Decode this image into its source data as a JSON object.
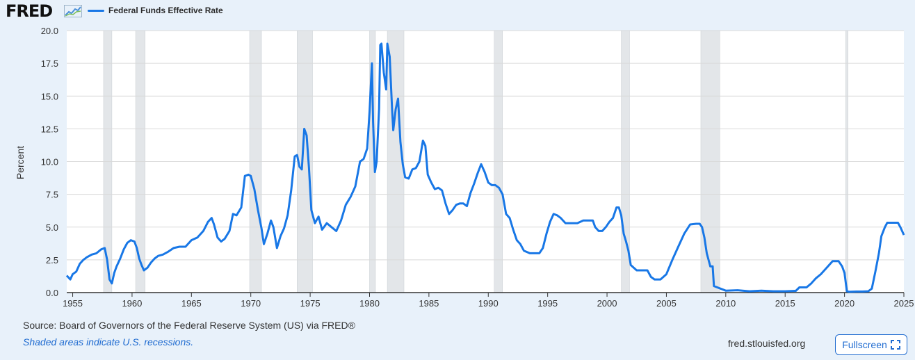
{
  "header": {
    "logo_text": "FRED",
    "legend_label": "Federal Funds Effective Rate"
  },
  "footer": {
    "source": "Source: Board of Governors of the Federal Reserve System (US) via FRED®",
    "note": "Shaded areas indicate U.S. recessions.",
    "site": "fred.stlouisfed.org",
    "fullscreen_label": "Fullscreen",
    "fullscreen_icon": "fullscreen-icon"
  },
  "colors": {
    "line": "#1877e6",
    "recession": "#e3e6e9",
    "plot_bg": "#ffffff",
    "grid": "#d9d9d9"
  },
  "chart_data": {
    "type": "line",
    "title": "",
    "xlabel": "",
    "ylabel": "Percent",
    "xlim": [
      1954.5,
      2025
    ],
    "ylim": [
      0,
      20
    ],
    "yticks": [
      "0.0",
      "2.5",
      "5.0",
      "7.5",
      "10.0",
      "12.5",
      "15.0",
      "17.5",
      "20.0"
    ],
    "xticks": [
      "1955",
      "1960",
      "1965",
      "1970",
      "1975",
      "1980",
      "1985",
      "1990",
      "1995",
      "2000",
      "2005",
      "2010",
      "2015",
      "2020",
      "2025"
    ],
    "grid": true,
    "recessions": [
      [
        1957.6,
        1958.3
      ],
      [
        1960.3,
        1961.1
      ],
      [
        1969.9,
        1970.9
      ],
      [
        1973.9,
        1975.2
      ],
      [
        1980.0,
        1980.5
      ],
      [
        1981.5,
        1982.9
      ],
      [
        1990.5,
        1991.2
      ],
      [
        2001.2,
        2001.9
      ],
      [
        2007.9,
        2009.5
      ],
      [
        2020.1,
        2020.3
      ]
    ],
    "series": [
      {
        "name": "Federal Funds Effective Rate",
        "x": [
          1954.5,
          1954.8,
          1955.0,
          1955.3,
          1955.6,
          1955.9,
          1956.2,
          1956.6,
          1957.0,
          1957.4,
          1957.7,
          1957.9,
          1958.1,
          1958.3,
          1958.5,
          1958.7,
          1959.0,
          1959.3,
          1959.6,
          1959.9,
          1960.2,
          1960.4,
          1960.6,
          1960.8,
          1961.0,
          1961.3,
          1961.6,
          1961.9,
          1962.2,
          1962.6,
          1963.0,
          1963.5,
          1964.0,
          1964.5,
          1965.0,
          1965.5,
          1966.0,
          1966.4,
          1966.7,
          1966.9,
          1967.2,
          1967.5,
          1967.8,
          1968.2,
          1968.5,
          1968.8,
          1969.2,
          1969.5,
          1969.8,
          1970.0,
          1970.3,
          1970.6,
          1970.9,
          1971.1,
          1971.4,
          1971.7,
          1971.9,
          1972.2,
          1972.5,
          1972.8,
          1973.1,
          1973.4,
          1973.7,
          1973.9,
          1974.1,
          1974.3,
          1974.5,
          1974.7,
          1974.9,
          1975.1,
          1975.4,
          1975.7,
          1976.0,
          1976.4,
          1976.8,
          1977.2,
          1977.6,
          1978.0,
          1978.4,
          1978.8,
          1979.2,
          1979.5,
          1979.8,
          1980.0,
          1980.2,
          1980.3,
          1980.45,
          1980.6,
          1980.8,
          1980.9,
          1981.0,
          1981.2,
          1981.4,
          1981.5,
          1981.7,
          1981.9,
          1982.0,
          1982.2,
          1982.4,
          1982.6,
          1982.8,
          1983.0,
          1983.3,
          1983.6,
          1983.9,
          1984.2,
          1984.5,
          1984.7,
          1984.9,
          1985.2,
          1985.5,
          1985.8,
          1986.1,
          1986.4,
          1986.7,
          1987.0,
          1987.3,
          1987.6,
          1987.9,
          1988.2,
          1988.5,
          1988.8,
          1989.1,
          1989.4,
          1989.7,
          1990.0,
          1990.3,
          1990.6,
          1990.9,
          1991.2,
          1991.5,
          1991.8,
          1992.1,
          1992.4,
          1992.7,
          1993.0,
          1993.5,
          1994.0,
          1994.3,
          1994.6,
          1994.9,
          1995.2,
          1995.5,
          1995.8,
          1996.1,
          1996.5,
          1997.0,
          1997.5,
          1998.0,
          1998.5,
          1998.8,
          1999.0,
          1999.3,
          1999.6,
          1999.9,
          2000.2,
          2000.5,
          2000.8,
          2001.0,
          2001.2,
          2001.4,
          2001.6,
          2001.8,
          2002.0,
          2002.5,
          2003.0,
          2003.4,
          2003.7,
          2004.0,
          2004.5,
          2005.0,
          2005.5,
          2006.0,
          2006.5,
          2007.0,
          2007.5,
          2007.8,
          2008.0,
          2008.2,
          2008.4,
          2008.7,
          2008.9,
          2009.0,
          2010.0,
          2011.0,
          2012.0,
          2013.0,
          2014.0,
          2015.0,
          2015.9,
          2016.2,
          2016.8,
          2017.2,
          2017.6,
          2018.0,
          2018.5,
          2019.0,
          2019.5,
          2019.8,
          2020.0,
          2020.2,
          2020.4,
          2021.0,
          2021.5,
          2022.0,
          2022.3,
          2022.6,
          2022.9,
          2023.1,
          2023.4,
          2023.6,
          2024.0,
          2024.5,
          2024.7,
          2024.9,
          2025.0
        ],
        "values": [
          1.3,
          1.0,
          1.4,
          1.6,
          2.2,
          2.5,
          2.7,
          2.9,
          3.0,
          3.3,
          3.4,
          2.5,
          1.0,
          0.7,
          1.5,
          2.0,
          2.6,
          3.3,
          3.8,
          4.0,
          3.9,
          3.4,
          2.6,
          2.1,
          1.7,
          1.9,
          2.3,
          2.6,
          2.8,
          2.9,
          3.1,
          3.4,
          3.5,
          3.5,
          4.0,
          4.2,
          4.7,
          5.4,
          5.7,
          5.2,
          4.2,
          3.9,
          4.1,
          4.7,
          6.0,
          5.9,
          6.5,
          8.9,
          9.0,
          8.9,
          7.9,
          6.3,
          4.9,
          3.7,
          4.5,
          5.5,
          5.0,
          3.4,
          4.3,
          4.9,
          5.9,
          7.8,
          10.4,
          10.5,
          9.6,
          9.4,
          12.5,
          12.0,
          9.5,
          6.3,
          5.3,
          5.8,
          4.8,
          5.3,
          5.0,
          4.7,
          5.5,
          6.7,
          7.3,
          8.1,
          10.0,
          10.2,
          11.0,
          13.8,
          17.5,
          13.0,
          9.2,
          10.0,
          14.0,
          18.9,
          19.0,
          16.8,
          15.5,
          19.0,
          18.0,
          14.0,
          12.4,
          14.0,
          14.8,
          11.5,
          9.8,
          8.8,
          8.7,
          9.4,
          9.5,
          10.0,
          11.6,
          11.2,
          9.0,
          8.4,
          7.9,
          8.0,
          7.8,
          6.8,
          6.0,
          6.3,
          6.7,
          6.8,
          6.8,
          6.6,
          7.6,
          8.3,
          9.1,
          9.8,
          9.2,
          8.4,
          8.2,
          8.2,
          8.0,
          7.5,
          6.0,
          5.7,
          4.8,
          4.0,
          3.7,
          3.2,
          3.0,
          3.0,
          3.0,
          3.4,
          4.5,
          5.4,
          6.0,
          5.9,
          5.7,
          5.3,
          5.3,
          5.3,
          5.5,
          5.5,
          5.5,
          5.0,
          4.7,
          4.7,
          5.0,
          5.4,
          5.7,
          6.5,
          6.5,
          5.9,
          4.5,
          3.9,
          3.2,
          2.1,
          1.7,
          1.7,
          1.7,
          1.2,
          1.0,
          1.0,
          1.4,
          2.5,
          3.5,
          4.5,
          5.2,
          5.25,
          5.25,
          5.0,
          4.2,
          3.0,
          2.0,
          2.0,
          0.5,
          0.15,
          0.18,
          0.1,
          0.15,
          0.1,
          0.1,
          0.13,
          0.4,
          0.4,
          0.7,
          1.1,
          1.4,
          1.9,
          2.4,
          2.4,
          2.0,
          1.5,
          0.1,
          0.06,
          0.08,
          0.08,
          0.1,
          0.3,
          1.6,
          3.0,
          4.3,
          5.0,
          5.33,
          5.33,
          5.33,
          5.0,
          4.6,
          4.4
        ]
      }
    ]
  }
}
